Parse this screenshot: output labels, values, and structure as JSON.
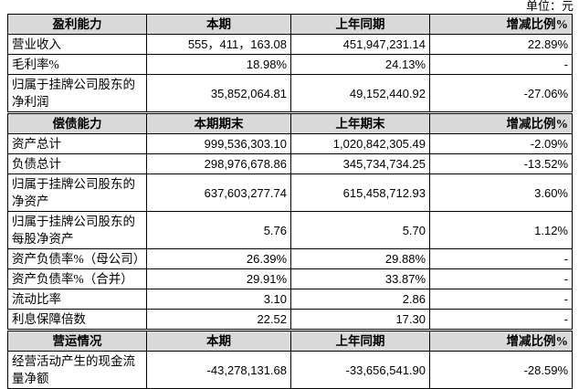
{
  "unit": "单位：元",
  "sections": [
    {
      "header": [
        "盈利能力",
        "本期",
        "上年同期",
        "增减比例%"
      ],
      "rows": [
        [
          "营业收入",
          "555，411，163.08",
          "451,947,231.14",
          "22.89%"
        ],
        [
          "毛利率%",
          "18.98%",
          "24.13%",
          "-"
        ],
        [
          "归属于挂牌公司股东的净利润",
          "35,852,064.81",
          "49,152,440.92",
          "-27.06%"
        ]
      ]
    },
    {
      "header": [
        "偿债能力",
        "本期期末",
        "上年期末",
        "增减比例%"
      ],
      "rows": [
        [
          "资产总计",
          "999,536,303.10",
          "1,020,842,305.49",
          "-2.09%"
        ],
        [
          "负债总计",
          "298,976,678.86",
          "345,734,734.25",
          "-13.52%"
        ],
        [
          "归属于挂牌公司股东的净资产",
          "637,603,277.74",
          "615,458,712.93",
          "3.60%"
        ],
        [
          "归属于挂牌公司股东的每股净资产",
          "5.76",
          "5.70",
          "1.12%"
        ],
        [
          "资产负债率%（母公司）",
          "26.39%",
          "29.88%",
          "-"
        ],
        [
          "资产负债率%（合并）",
          "29.91%",
          "33.87%",
          "-"
        ],
        [
          "流动比率",
          "3.10",
          "2.86",
          "-"
        ],
        [
          "利息保障倍数",
          "22.52",
          "17.30",
          "-"
        ]
      ]
    },
    {
      "header": [
        "营运情况",
        "本期",
        "上年同期",
        "增减比例%"
      ],
      "rows": [
        [
          "经营活动产生的现金流量净额",
          "-43,278,131.68",
          "-33,656,541.90",
          "-28.59%"
        ]
      ]
    }
  ]
}
